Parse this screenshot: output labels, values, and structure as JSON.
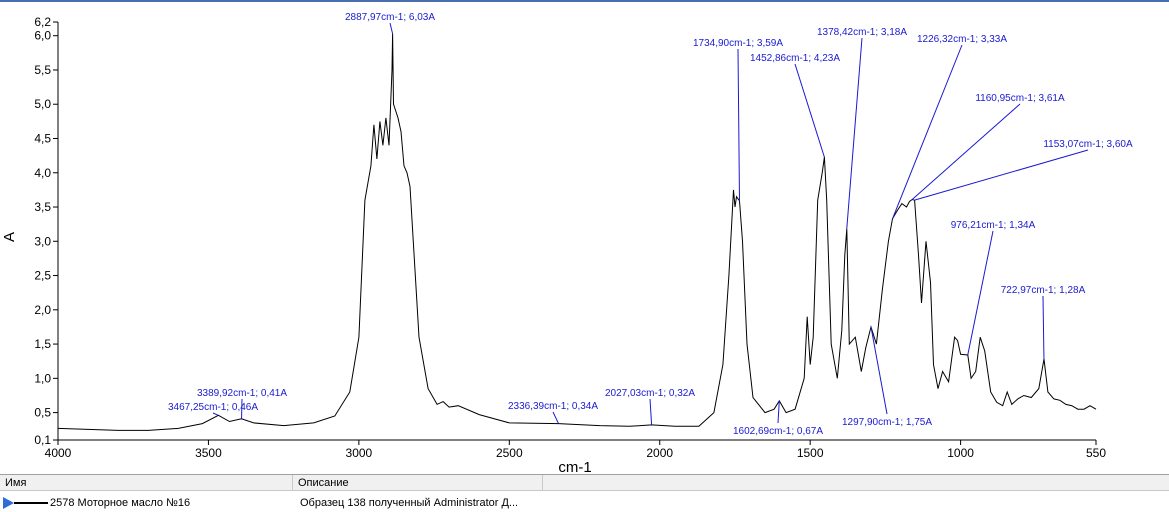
{
  "chart_data": {
    "type": "line",
    "xlabel": "cm-1",
    "ylabel": "A",
    "xlim": [
      4000,
      550
    ],
    "ylim": [
      0.1,
      6.2
    ],
    "x_ticks": [
      "4000",
      "3500",
      "3000",
      "2500",
      "2000",
      "1500",
      "1000",
      "550"
    ],
    "y_ticks": [
      "0,1",
      "0,5",
      "1,0",
      "1,5",
      "2,0",
      "2,5",
      "3,0",
      "3,5",
      "4,0",
      "4,5",
      "5,0",
      "5,5",
      "6,0",
      "6,2"
    ],
    "series": [
      {
        "color": "#000000",
        "points": [
          [
            4000,
            0.27
          ],
          [
            3800,
            0.24
          ],
          [
            3700,
            0.24
          ],
          [
            3600,
            0.27
          ],
          [
            3520,
            0.34
          ],
          [
            3467,
            0.46
          ],
          [
            3430,
            0.37
          ],
          [
            3390,
            0.41
          ],
          [
            3350,
            0.35
          ],
          [
            3250,
            0.31
          ],
          [
            3150,
            0.35
          ],
          [
            3080,
            0.45
          ],
          [
            3030,
            0.8
          ],
          [
            3000,
            1.6
          ],
          [
            2980,
            3.6
          ],
          [
            2960,
            4.1
          ],
          [
            2950,
            4.7
          ],
          [
            2940,
            4.2
          ],
          [
            2930,
            4.75
          ],
          [
            2920,
            4.4
          ],
          [
            2910,
            4.8
          ],
          [
            2900,
            4.4
          ],
          [
            2890,
            5.5
          ],
          [
            2887.97,
            6.03
          ],
          [
            2885,
            5.0
          ],
          [
            2870,
            4.8
          ],
          [
            2860,
            4.6
          ],
          [
            2850,
            4.1
          ],
          [
            2840,
            4.0
          ],
          [
            2830,
            3.8
          ],
          [
            2800,
            1.6
          ],
          [
            2770,
            0.85
          ],
          [
            2740,
            0.62
          ],
          [
            2720,
            0.66
          ],
          [
            2700,
            0.58
          ],
          [
            2670,
            0.6
          ],
          [
            2600,
            0.47
          ],
          [
            2500,
            0.35
          ],
          [
            2336.39,
            0.34
          ],
          [
            2200,
            0.31
          ],
          [
            2100,
            0.3
          ],
          [
            2027.03,
            0.32
          ],
          [
            1950,
            0.3
          ],
          [
            1870,
            0.3
          ],
          [
            1820,
            0.5
          ],
          [
            1790,
            1.2
          ],
          [
            1770,
            2.5
          ],
          [
            1755,
            3.75
          ],
          [
            1750,
            3.5
          ],
          [
            1745,
            3.65
          ],
          [
            1734.9,
            3.59
          ],
          [
            1725,
            3.0
          ],
          [
            1710,
            1.5
          ],
          [
            1690,
            0.72
          ],
          [
            1650,
            0.5
          ],
          [
            1620,
            0.55
          ],
          [
            1602.69,
            0.67
          ],
          [
            1580,
            0.5
          ],
          [
            1550,
            0.55
          ],
          [
            1520,
            1.0
          ],
          [
            1510,
            1.9
          ],
          [
            1500,
            1.2
          ],
          [
            1490,
            1.6
          ],
          [
            1475,
            3.6
          ],
          [
            1460,
            4.0
          ],
          [
            1452.86,
            4.23
          ],
          [
            1445,
            3.6
          ],
          [
            1430,
            1.5
          ],
          [
            1410,
            1.0
          ],
          [
            1395,
            1.7
          ],
          [
            1385,
            2.8
          ],
          [
            1378.42,
            3.18
          ],
          [
            1370,
            1.5
          ],
          [
            1350,
            1.6
          ],
          [
            1330,
            1.1
          ],
          [
            1315,
            1.45
          ],
          [
            1297.9,
            1.75
          ],
          [
            1280,
            1.5
          ],
          [
            1260,
            2.3
          ],
          [
            1240,
            3.0
          ],
          [
            1226.32,
            3.33
          ],
          [
            1210,
            3.45
          ],
          [
            1195,
            3.55
          ],
          [
            1180,
            3.5
          ],
          [
            1170,
            3.58
          ],
          [
            1160.95,
            3.61
          ],
          [
            1153.07,
            3.6
          ],
          [
            1140,
            2.8
          ],
          [
            1130,
            2.1
          ],
          [
            1115,
            3.0
          ],
          [
            1100,
            2.4
          ],
          [
            1090,
            1.2
          ],
          [
            1075,
            0.85
          ],
          [
            1060,
            1.1
          ],
          [
            1040,
            0.95
          ],
          [
            1020,
            1.6
          ],
          [
            1010,
            1.55
          ],
          [
            1000,
            1.35
          ],
          [
            976.21,
            1.34
          ],
          [
            965,
            1.0
          ],
          [
            950,
            1.1
          ],
          [
            935,
            1.6
          ],
          [
            920,
            1.4
          ],
          [
            900,
            0.8
          ],
          [
            880,
            0.65
          ],
          [
            860,
            0.6
          ],
          [
            845,
            0.8
          ],
          [
            830,
            0.62
          ],
          [
            810,
            0.7
          ],
          [
            790,
            0.75
          ],
          [
            765,
            0.72
          ],
          [
            740,
            0.85
          ],
          [
            730,
            1.1
          ],
          [
            722.97,
            1.28
          ],
          [
            710,
            0.8
          ],
          [
            690,
            0.7
          ],
          [
            670,
            0.68
          ],
          [
            650,
            0.62
          ],
          [
            630,
            0.6
          ],
          [
            610,
            0.55
          ],
          [
            590,
            0.55
          ],
          [
            570,
            0.6
          ],
          [
            550,
            0.55
          ]
        ]
      }
    ],
    "annotations": [
      {
        "label": "2887,97cm-1; 6,03A",
        "x": 2887.97,
        "y": 6.03
      },
      {
        "label": "1734,90cm-1; 3,59A",
        "x": 1734.9,
        "y": 3.59
      },
      {
        "label": "1452,86cm-1; 4,23A",
        "x": 1452.86,
        "y": 4.23
      },
      {
        "label": "1378,42cm-1; 3,18A",
        "x": 1378.42,
        "y": 3.18
      },
      {
        "label": "1226,32cm-1; 3,33A",
        "x": 1226.32,
        "y": 3.33
      },
      {
        "label": "1160,95cm-1; 3,61A",
        "x": 1160.95,
        "y": 3.61
      },
      {
        "label": "1153,07cm-1; 3,60A",
        "x": 1153.07,
        "y": 3.6
      },
      {
        "label": "976,21cm-1; 1,34A",
        "x": 976.21,
        "y": 1.34
      },
      {
        "label": "722,97cm-1; 1,28A",
        "x": 722.97,
        "y": 1.28
      },
      {
        "label": "1297,90cm-1; 1,75A",
        "x": 1297.9,
        "y": 1.75
      },
      {
        "label": "1602,69cm-1; 0,67A",
        "x": 1602.69,
        "y": 0.67
      },
      {
        "label": "2027,03cm-1; 0,32A",
        "x": 2027.03,
        "y": 0.32
      },
      {
        "label": "2336,39cm-1; 0,34A",
        "x": 2336.39,
        "y": 0.34
      },
      {
        "label": "3389,92cm-1; 0,41A",
        "x": 3389.92,
        "y": 0.41
      },
      {
        "label": "3467,25cm-1; 0,46A",
        "x": 3467.25,
        "y": 0.46
      }
    ]
  },
  "legend_table": {
    "col_name": "Имя",
    "col_desc": "Описание",
    "row": {
      "name": "2578 Моторное масло №16",
      "desc": "Образец 138 полученный Administrator Д..."
    }
  }
}
